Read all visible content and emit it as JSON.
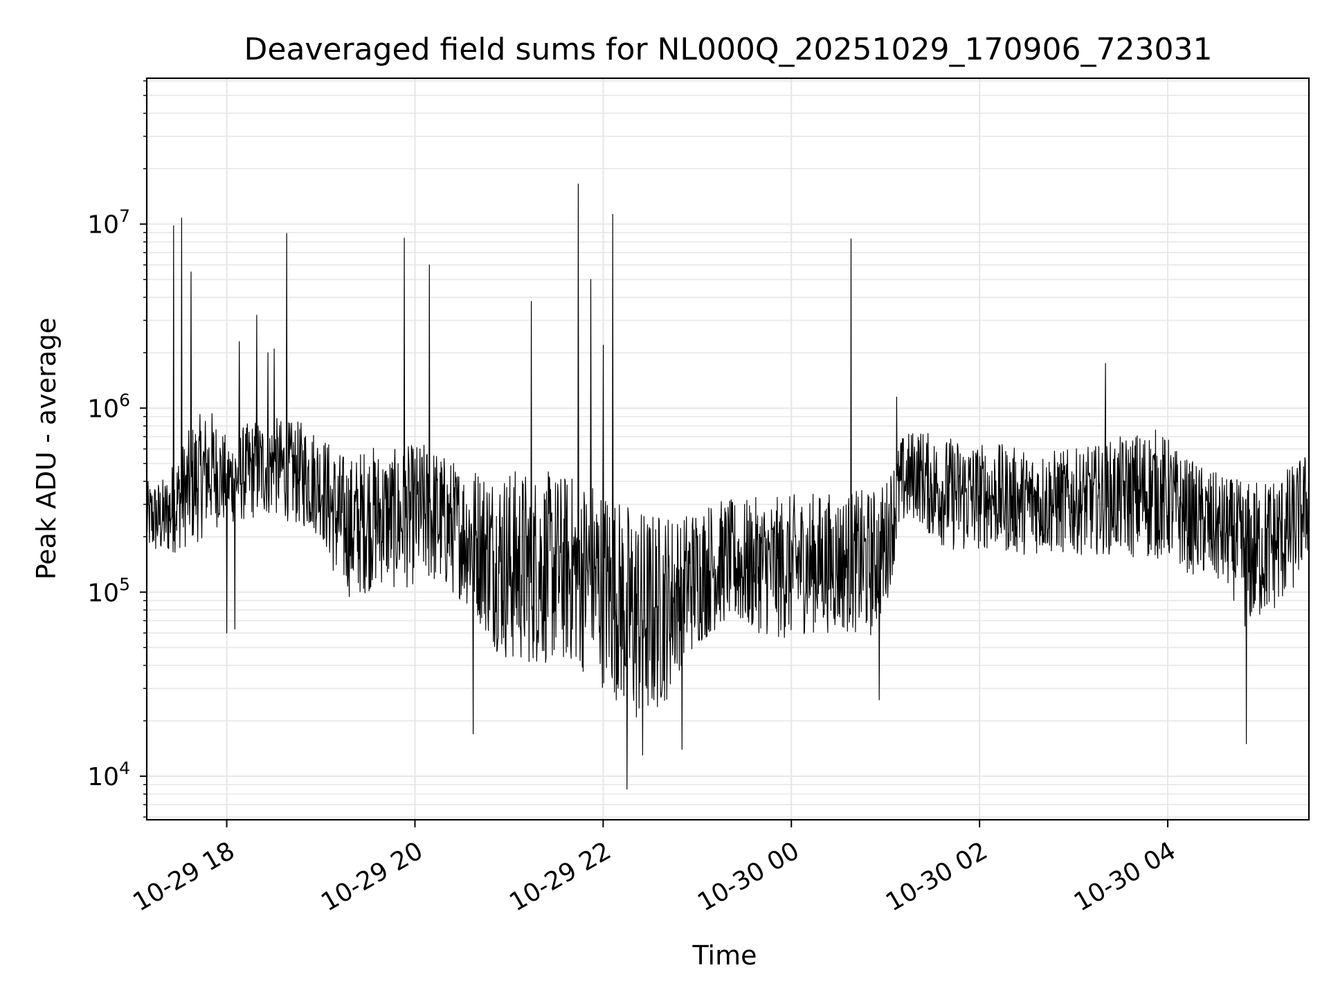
{
  "chart_data": {
    "type": "line",
    "title": "Deaveraged field sums for NL000Q_20251029_170906_723031",
    "xlabel": "Time",
    "ylabel": "Peak ADU - average",
    "y_scale": "log",
    "ylim": [
      5800,
      62000000
    ],
    "xlim": [
      "2025-10-29 17:09",
      "2025-10-30 05:30"
    ],
    "x_ticks": [
      {
        "value": "2025-10-29 18:00",
        "label": "10-29 18"
      },
      {
        "value": "2025-10-29 20:00",
        "label": "10-29 20"
      },
      {
        "value": "2025-10-29 22:00",
        "label": "10-29 22"
      },
      {
        "value": "2025-10-30 00:00",
        "label": "10-30 00"
      },
      {
        "value": "2025-10-30 02:00",
        "label": "10-30 02"
      },
      {
        "value": "2025-10-30 04:00",
        "label": "10-30 04"
      }
    ],
    "y_ticks": [
      {
        "value": 10000,
        "base": "10",
        "exp": "4"
      },
      {
        "value": 100000,
        "base": "10",
        "exp": "5"
      },
      {
        "value": 1000000,
        "base": "10",
        "exp": "6"
      },
      {
        "value": 10000000,
        "base": "10",
        "exp": "7"
      }
    ],
    "grid": true,
    "line_color": "#000000",
    "grid_color": "#e6e6e6",
    "series": [
      {
        "x": [
          "2025-10-29 17:09",
          "2025-10-29 17:20",
          "2025-10-29 17:30",
          "2025-10-29 17:40",
          "2025-10-29 17:50",
          "2025-10-29 18:00",
          "2025-10-29 18:10",
          "2025-10-29 18:20",
          "2025-10-29 18:30",
          "2025-10-29 18:40",
          "2025-10-29 18:50",
          "2025-10-29 19:00",
          "2025-10-29 19:10",
          "2025-10-29 19:20",
          "2025-10-29 19:30",
          "2025-10-29 19:40",
          "2025-10-29 19:50",
          "2025-10-29 20:00",
          "2025-10-29 20:10",
          "2025-10-29 20:20",
          "2025-10-29 20:30",
          "2025-10-29 20:40",
          "2025-10-29 20:50",
          "2025-10-29 21:00",
          "2025-10-29 21:10",
          "2025-10-29 21:20",
          "2025-10-29 21:30",
          "2025-10-29 21:40",
          "2025-10-29 21:50",
          "2025-10-29 22:00",
          "2025-10-29 22:10",
          "2025-10-29 22:20",
          "2025-10-29 22:30",
          "2025-10-29 22:40",
          "2025-10-29 22:50",
          "2025-10-29 23:00",
          "2025-10-29 23:10",
          "2025-10-29 23:20",
          "2025-10-29 23:30",
          "2025-10-29 23:40",
          "2025-10-29 23:50",
          "2025-10-30 00:00",
          "2025-10-30 00:10",
          "2025-10-30 00:20",
          "2025-10-30 00:30",
          "2025-10-30 00:40",
          "2025-10-30 00:50",
          "2025-10-30 01:00",
          "2025-10-30 01:10",
          "2025-10-30 01:20",
          "2025-10-30 01:30",
          "2025-10-30 01:40",
          "2025-10-30 01:50",
          "2025-10-30 02:00",
          "2025-10-30 02:10",
          "2025-10-30 02:20",
          "2025-10-30 02:30",
          "2025-10-30 02:40",
          "2025-10-30 02:50",
          "2025-10-30 03:00",
          "2025-10-30 03:10",
          "2025-10-30 03:20",
          "2025-10-30 03:30",
          "2025-10-30 03:40",
          "2025-10-30 03:50",
          "2025-10-30 04:00",
          "2025-10-30 04:10",
          "2025-10-30 04:20",
          "2025-10-30 04:30",
          "2025-10-30 04:40",
          "2025-10-30 04:50",
          "2025-10-30 05:00",
          "2025-10-30 05:10",
          "2025-10-30 05:20",
          "2025-10-30 05:30"
        ],
        "min": [
          160000,
          150000,
          170000,
          180000,
          220000,
          230000,
          240000,
          250000,
          260000,
          240000,
          220000,
          200000,
          110000,
          90000,
          100000,
          110000,
          100000,
          110000,
          110000,
          100000,
          90000,
          70000,
          50000,
          40000,
          40000,
          40000,
          40000,
          40000,
          35000,
          30000,
          25000,
          18000,
          20000,
          25000,
          40000,
          50000,
          60000,
          70000,
          60000,
          60000,
          55000,
          55000,
          60000,
          60000,
          60000,
          60000,
          55000,
          80000,
          220000,
          250000,
          190000,
          170000,
          160000,
          170000,
          170000,
          160000,
          160000,
          160000,
          160000,
          160000,
          160000,
          160000,
          160000,
          150000,
          150000,
          150000,
          130000,
          120000,
          110000,
          100000,
          60000,
          70000,
          80000,
          100000,
          160000
        ],
        "max": [
          400000,
          420000,
          600000,
          900000,
          1000000,
          700000,
          800000,
          900000,
          900000,
          850000,
          850000,
          750000,
          600000,
          550000,
          650000,
          600000,
          600000,
          650000,
          650000,
          550000,
          500000,
          500000,
          480000,
          480000,
          470000,
          460000,
          450000,
          440000,
          430000,
          400000,
          330000,
          300000,
          280000,
          280000,
          280000,
          300000,
          320000,
          320000,
          320000,
          330000,
          330000,
          340000,
          350000,
          350000,
          350000,
          360000,
          360000,
          400000,
          700000,
          800000,
          720000,
          700000,
          700000,
          650000,
          650000,
          620000,
          600000,
          600000,
          600000,
          600000,
          620000,
          650000,
          700000,
          750000,
          800000,
          700000,
          550000,
          500000,
          450000,
          420000,
          400000,
          420000,
          450000,
          500000,
          600000
        ],
        "spikes": [
          {
            "x": "2025-10-29 17:26",
            "value": 9800000
          },
          {
            "x": "2025-10-29 17:31",
            "value": 10800000
          },
          {
            "x": "2025-10-29 17:37",
            "value": 5500000
          },
          {
            "x": "2025-10-29 18:08",
            "value": 2300000
          },
          {
            "x": "2025-10-29 18:19",
            "value": 3200000
          },
          {
            "x": "2025-10-29 18:26",
            "value": 2000000
          },
          {
            "x": "2025-10-29 18:30",
            "value": 2100000
          },
          {
            "x": "2025-10-29 18:38",
            "value": 8900000
          },
          {
            "x": "2025-10-29 19:53",
            "value": 8400000
          },
          {
            "x": "2025-10-29 20:09",
            "value": 6000000
          },
          {
            "x": "2025-10-29 21:14",
            "value": 3800000
          },
          {
            "x": "2025-10-29 21:44",
            "value": 16500000
          },
          {
            "x": "2025-10-29 21:52",
            "value": 5000000
          },
          {
            "x": "2025-10-29 22:00",
            "value": 2200000
          },
          {
            "x": "2025-10-29 22:06",
            "value": 11300000
          },
          {
            "x": "2025-10-30 00:38",
            "value": 8300000
          },
          {
            "x": "2025-10-30 01:07",
            "value": 1150000
          },
          {
            "x": "2025-10-30 03:20",
            "value": 1750000
          }
        ],
        "dips": [
          {
            "x": "2025-10-29 18:00",
            "value": 60000
          },
          {
            "x": "2025-10-29 18:05",
            "value": 63000
          },
          {
            "x": "2025-10-29 20:37",
            "value": 17000
          },
          {
            "x": "2025-10-29 22:15",
            "value": 8500
          },
          {
            "x": "2025-10-29 22:25",
            "value": 13000
          },
          {
            "x": "2025-10-29 22:50",
            "value": 14000
          },
          {
            "x": "2025-10-30 00:56",
            "value": 26000
          },
          {
            "x": "2025-10-30 04:50",
            "value": 15000
          }
        ]
      }
    ]
  }
}
